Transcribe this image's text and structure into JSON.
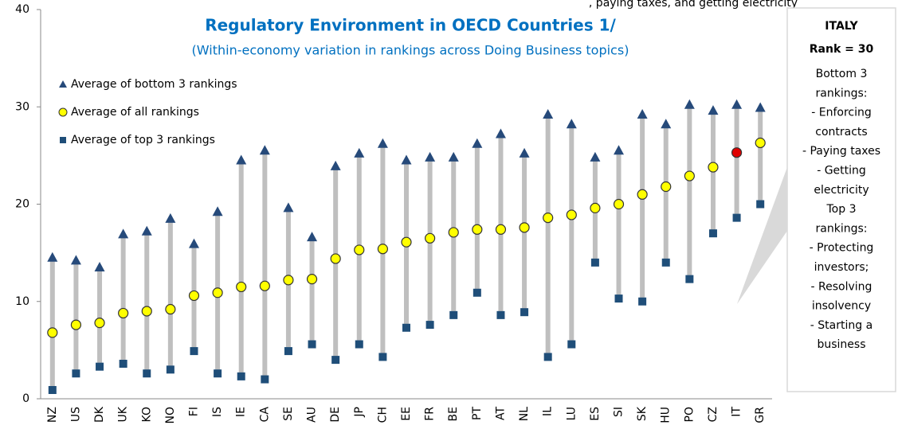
{
  "chart_data": {
    "type": "range-dot",
    "title": "Regulatory Environment in OECD Countries 1/",
    "subtitle": "(Within-economy  variation in rankings across Doing Business topics)",
    "top_note": ", paying taxes, and getting electricity",
    "categories": [
      "NZ",
      "US",
      "DK",
      "UK",
      "KO",
      "NO",
      "FI",
      "IS",
      "IE",
      "CA",
      "SE",
      "AU",
      "DE",
      "JP",
      "CH",
      "EE",
      "FR",
      "BE",
      "PT",
      "AT",
      "NL",
      "IL",
      "LU",
      "ES",
      "SI",
      "SK",
      "HU",
      "PO",
      "CZ",
      "IT",
      "GR"
    ],
    "series": [
      {
        "name": "Average of bottom 3 rankings",
        "marker": "triangle",
        "color": "#264a7a",
        "values": [
          14.5,
          14.2,
          13.5,
          16.9,
          17.2,
          18.5,
          15.9,
          19.2,
          24.5,
          25.5,
          19.6,
          16.6,
          23.9,
          25.2,
          26.2,
          24.5,
          24.8,
          24.8,
          26.2,
          27.2,
          25.2,
          29.2,
          28.2,
          24.8,
          25.5,
          29.2,
          28.2,
          30.2,
          29.6,
          30.2,
          29.9
        ]
      },
      {
        "name": "Average of all rankings",
        "marker": "circle",
        "color": "#ffff00",
        "values": [
          6.8,
          7.6,
          7.8,
          8.8,
          9.0,
          9.2,
          10.6,
          10.9,
          11.5,
          11.6,
          12.2,
          12.3,
          14.4,
          15.3,
          15.4,
          16.1,
          16.5,
          17.1,
          17.4,
          17.4,
          17.6,
          18.6,
          18.9,
          19.6,
          20.0,
          21.0,
          21.8,
          22.9,
          23.8,
          25.3,
          26.3
        ]
      },
      {
        "name": "Average of top 3 rankings",
        "marker": "square",
        "color": "#1f4e79",
        "values": [
          0.9,
          2.6,
          3.3,
          3.6,
          2.6,
          3.0,
          4.9,
          2.6,
          2.3,
          2.0,
          4.9,
          5.6,
          4.0,
          5.6,
          4.3,
          7.3,
          7.6,
          8.6,
          10.9,
          8.6,
          8.9,
          4.3,
          5.6,
          14.0,
          10.3,
          10.0,
          14.0,
          12.3,
          17.0,
          18.6,
          20.0
        ]
      }
    ],
    "range_color": "#bfbfbf",
    "highlight_category": "IT",
    "highlight_color": "#e00000",
    "ylim": [
      0,
      40
    ],
    "yticks": [
      0,
      10,
      20,
      30,
      40
    ],
    "grid": false,
    "legend": "top-left",
    "callout": {
      "title": "ITALY",
      "subtitle": "Rank = 30",
      "lines": [
        "Bottom 3",
        "rankings:",
        "- Enforcing",
        "contracts",
        "- Paying taxes",
        "- Getting",
        "electricity",
        "Top 3",
        "rankings:",
        "- Protecting",
        "investors;",
        "- Resolving",
        "insolvency",
        "- Starting a",
        "business"
      ]
    }
  }
}
